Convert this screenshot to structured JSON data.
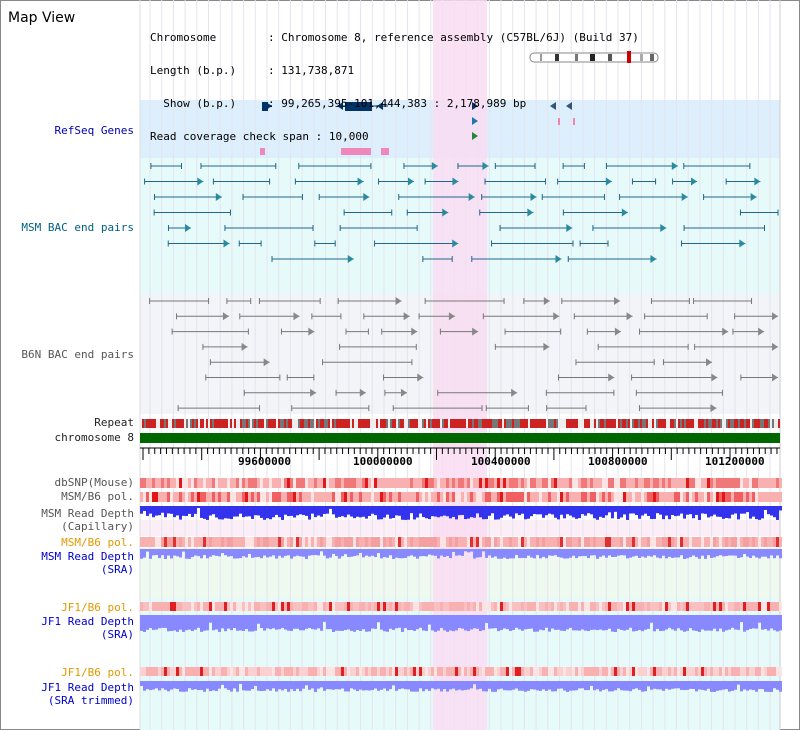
{
  "title": "Map View",
  "info": {
    "lines": [
      {
        "key": "Chromosome",
        "sep": ": ",
        "val": "Chromosome 8, reference assembly (C57BL/6J) (Build 37)"
      },
      {
        "key": "Length (b.p.)",
        "sep": ": ",
        "val": "131,738,871"
      },
      {
        "key": "  Show (b.p.)",
        "sep": ": ",
        "val": "99,265,395-101,444,383 : 2,178,989 bp"
      },
      {
        "key": "Read coverage check span",
        "sep": " : ",
        "val": "10,000"
      }
    ]
  },
  "tracks": {
    "refseq": "RefSeq Genes",
    "msm_bac": "MSM BAC end pairs",
    "b6n_bac": "B6N BAC end pairs",
    "repeat": "Repeat",
    "chromosome": "chromosome 8",
    "dbsnp": "dbSNP(Mouse)",
    "msm_pol": "MSM/B6 pol.",
    "msm_depth_cap_1": "MSM Read Depth",
    "msm_depth_cap_2": "(Capillary)",
    "msm_pol2": "MSM/B6 pol.",
    "msm_depth_sra_1": "MSM Read Depth",
    "msm_depth_sra_2": "(SRA)",
    "jf1_pol": "JF1/B6 pol.",
    "jf1_depth_1": "JF1 Read Depth",
    "jf1_depth_2": "(SRA)",
    "jf1_pol2": "JF1/B6 pol.",
    "jf1_trim_1": "JF1 Read Depth",
    "jf1_trim_2": "(SRA trimmed)"
  },
  "ruler": {
    "ticks": [
      "99600000",
      "100000000",
      "100400000",
      "100800000",
      "101200000"
    ]
  },
  "colors": {
    "refseq_bg": "#ddeefc",
    "msm_bg": "#e6fafa",
    "b6n_bg": "#f2f4f8",
    "highlight": "#f9dcf2",
    "chrom_green": "#006600",
    "depth_blue": "#3333ee",
    "depth_violet": "#8888ff"
  }
}
